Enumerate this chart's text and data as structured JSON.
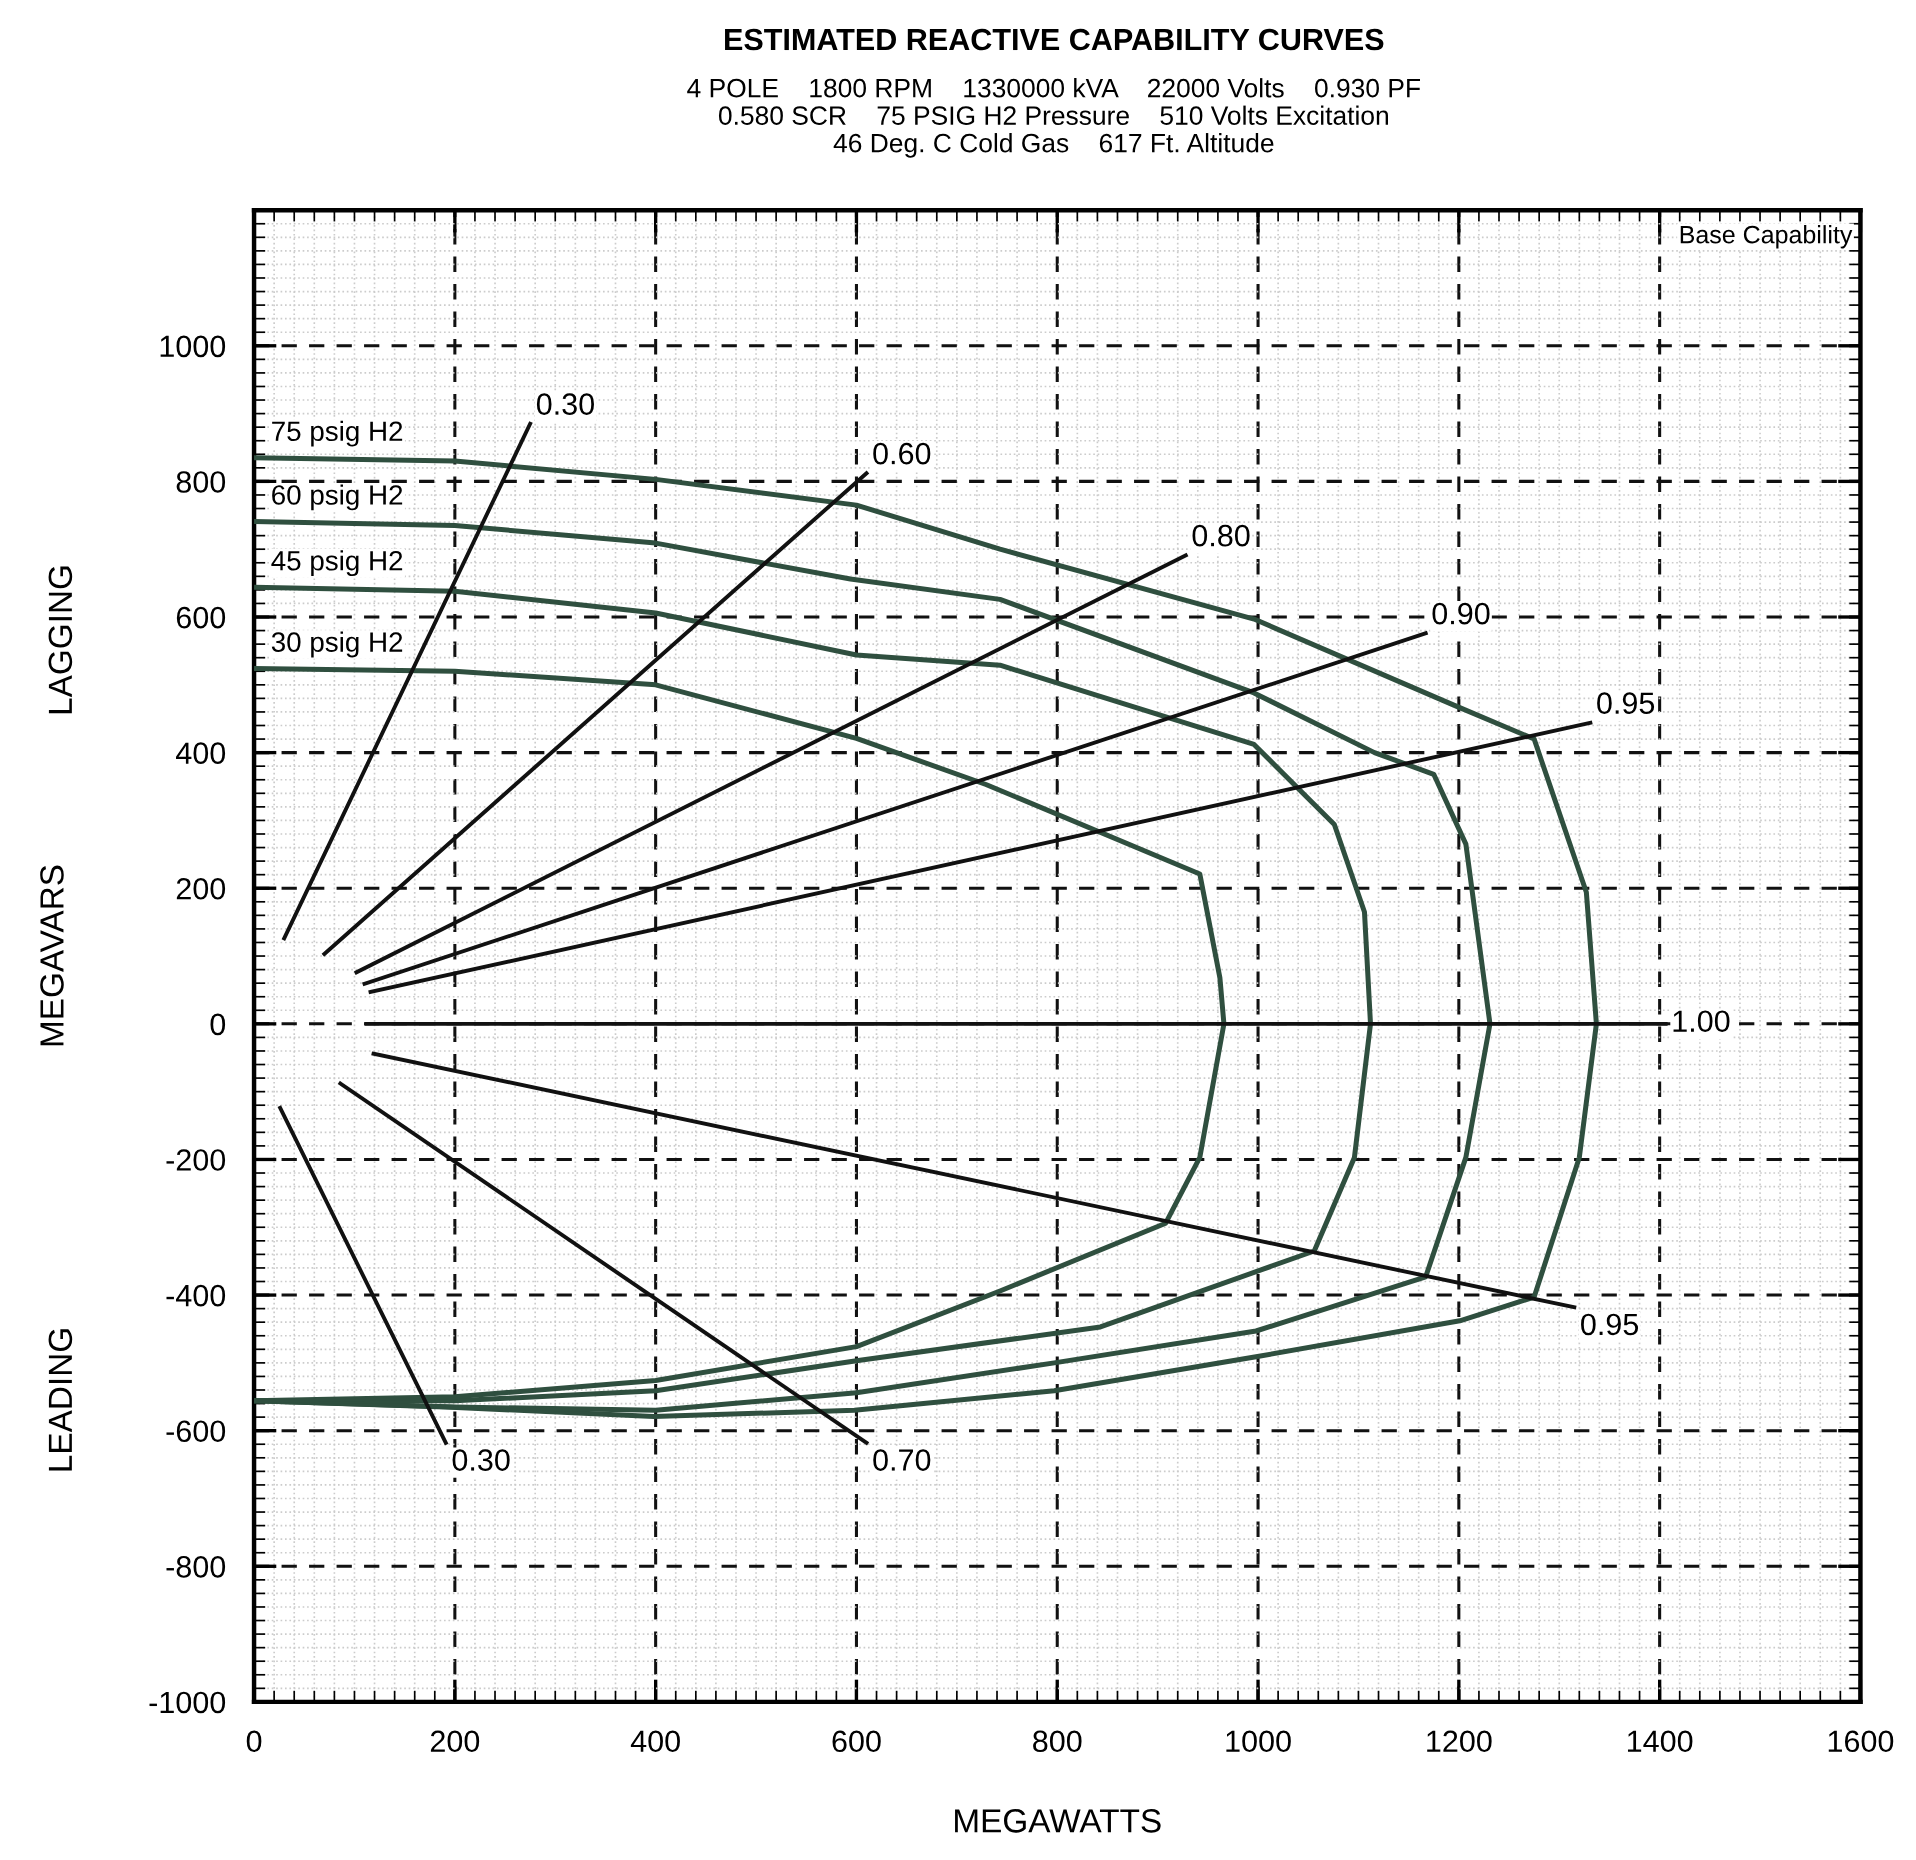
{
  "chart_data": {
    "type": "line",
    "title": "ESTIMATED REACTIVE CAPABILITY CURVES",
    "subtitle": "4 POLE    1800 RPM    1330000 kVA    22000 Volts    0.930 PF\n0.580 SCR    75 PSIG H2 Pressure    510 Volts Excitation\n46 Deg. C Cold Gas    617 Ft. Altitude",
    "xlabel": "MEGAWATTS",
    "ylabel": "MEGAVARS",
    "annotations": [
      "Base Capability",
      "LAGGING",
      "LEADING"
    ],
    "xlim": [
      0,
      1600
    ],
    "ylim": [
      -1000,
      1200
    ],
    "xticks": [
      0,
      200,
      400,
      600,
      800,
      1000,
      1200,
      1400,
      1600
    ],
    "yticks": [
      -1000,
      -800,
      -600,
      -400,
      -200,
      0,
      200,
      400,
      600,
      800,
      1000,
      {
        "value": 1200,
        "label": null
      }
    ],
    "grid": true,
    "legend": false,
    "line_style": "solid",
    "marker": "none",
    "series": [
      {
        "name": "75 psig H2",
        "color": "#2f4f3f",
        "x": [
          0,
          200,
          400,
          600,
          743,
          996,
          1195,
          1275,
          1327,
          1337,
          1320,
          1275,
          1201,
          998,
          797,
          598,
          398,
          191,
          0
        ],
        "values": [
          835,
          830,
          803,
          765,
          700,
          597,
          470,
          420,
          194,
          0,
          -197,
          -403,
          -438,
          -491,
          -541,
          -570,
          -579,
          -565,
          -556
        ]
      },
      {
        "name": "60 psig H2",
        "color": "#2f4f3f",
        "x": [
          0,
          200,
          400,
          594,
          743,
          996,
          1116,
          1175,
          1207,
          1231,
          1207,
          1167,
          998,
          797,
          600,
          400,
          200,
          0
        ],
        "values": [
          741,
          735,
          709,
          656,
          626,
          488,
          400,
          368,
          265,
          0,
          -197,
          -373,
          -453,
          -500,
          -544,
          -570,
          -565,
          -556
        ]
      },
      {
        "name": "45 psig H2",
        "color": "#2f4f3f",
        "x": [
          0,
          200,
          400,
          600,
          743,
          996,
          1076,
          1106,
          1112,
          1096,
          1056,
          843,
          600,
          400,
          200,
          0
        ],
        "values": [
          644,
          638,
          606,
          544,
          529,
          412,
          294,
          165,
          0,
          -197,
          -335,
          -447,
          -497,
          -541,
          -556,
          -556
        ]
      },
      {
        "name": "30 psig H2",
        "color": "#2f4f3f",
        "x": [
          0,
          200,
          400,
          600,
          729,
          942,
          962,
          966,
          942,
          908,
          743,
          600,
          400,
          200,
          0
        ],
        "values": [
          524,
          520,
          500,
          421,
          353,
          221,
          68,
          0,
          -197,
          -294,
          -394,
          -476,
          -526,
          -550,
          -556
        ]
      },
      {
        "name": "0.30",
        "color": "#111111",
        "x": [
          30,
          275
        ],
        "values": [
          126,
          885
        ]
      },
      {
        "name": "0.60",
        "color": "#111111",
        "x": [
          70,
          610
        ],
        "values": [
          103,
          812
        ]
      },
      {
        "name": "0.80",
        "color": "#111111",
        "x": [
          102,
          928
        ],
        "values": [
          76,
          691
        ]
      },
      {
        "name": "0.90",
        "color": "#111111",
        "x": [
          110,
          1167
        ],
        "values": [
          59,
          576
        ]
      },
      {
        "name": "0.95",
        "color": "#111111",
        "x": [
          116,
          1331
        ],
        "values": [
          47,
          444
        ]
      },
      {
        "name": "1.00",
        "color": "#111111",
        "x": [
          112,
          1406
        ],
        "values": [
          0,
          0
        ]
      },
      {
        "name": "0.95",
        "color": "#111111",
        "x": [
          119,
          1315
        ],
        "values": [
          -44,
          -418
        ]
      },
      {
        "name": "0.70",
        "color": "#111111",
        "x": [
          86,
          610
        ],
        "values": [
          -88,
          -618
        ]
      },
      {
        "name": "0.30",
        "color": "#111111",
        "x": [
          26,
          191
        ],
        "values": [
          -124,
          -618
        ]
      }
    ]
  }
}
